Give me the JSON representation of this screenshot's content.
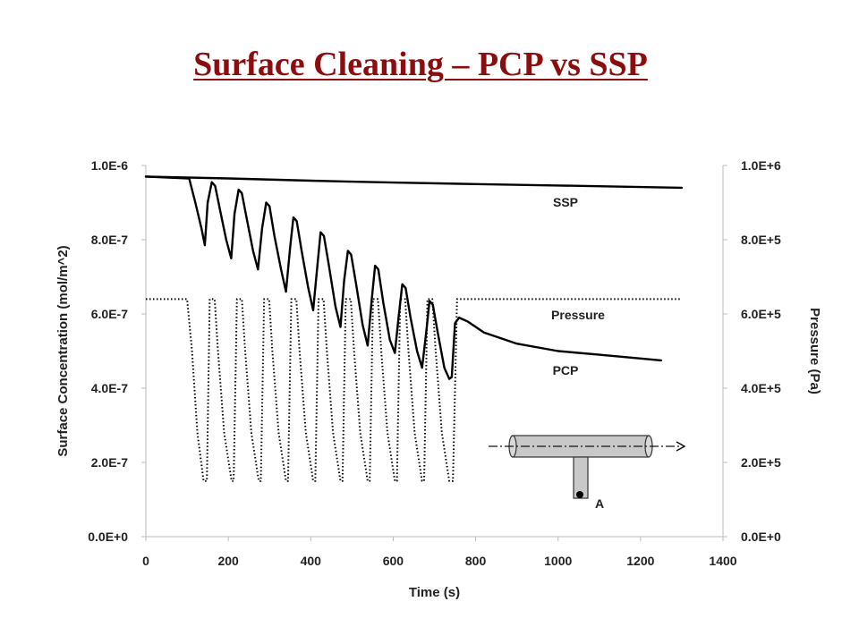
{
  "slide": {
    "title": "Surface Cleaning – PCP vs SSP"
  },
  "chart_data": {
    "type": "line",
    "xlabel": "Time (s)",
    "ylabel": "Surface Concentration (mol/m^2)",
    "y2label": "Pressure (Pa)",
    "xlim": [
      0,
      1400
    ],
    "ylim": [
      0,
      1e-06
    ],
    "y2lim": [
      0,
      1000000
    ],
    "x_ticks": [
      "0",
      "200",
      "400",
      "600",
      "800",
      "1000",
      "1200",
      "1400"
    ],
    "y_ticks": [
      "0.0E+0",
      "2.0E-7",
      "4.0E-7",
      "6.0E-7",
      "8.0E-7",
      "1.0E-6"
    ],
    "y2_ticks": [
      "0.0E+0",
      "2.0E+5",
      "4.0E+5",
      "6.0E+5",
      "8.0E+5",
      "1.0E+6"
    ],
    "grid": false,
    "series": [
      {
        "name": "SSP",
        "axis": "left",
        "style": "solid",
        "x": [
          0,
          200,
          400,
          600,
          800,
          1000,
          1300
        ],
        "y": [
          9.7e-07,
          9.65e-07,
          9.59e-07,
          9.54e-07,
          9.5e-07,
          9.46e-07,
          9.4e-07
        ]
      },
      {
        "name": "PCP",
        "axis": "left",
        "style": "solid",
        "x": [
          0,
          105,
          120,
          135,
          143,
          150,
          160,
          168,
          180,
          195,
          207,
          215,
          225,
          233,
          245,
          260,
          272,
          282,
          292,
          300,
          312,
          328,
          340,
          350,
          358,
          366,
          378,
          394,
          406,
          416,
          424,
          432,
          444,
          460,
          472,
          481,
          490,
          498,
          510,
          526,
          538,
          548,
          556,
          564,
          576,
          592,
          604,
          613,
          622,
          630,
          642,
          658,
          670,
          680,
          688,
          696,
          708,
          724,
          736,
          742,
          750,
          760,
          780,
          820,
          900,
          1000,
          1100,
          1250
        ],
        "y": [
          9.7e-07,
          9.65e-07,
          9e-07,
          8.3e-07,
          7.85e-07,
          9e-07,
          9.55e-07,
          9.45e-07,
          8.8e-07,
          8e-07,
          7.5e-07,
          8.7e-07,
          9.35e-07,
          9.25e-07,
          8.55e-07,
          7.7e-07,
          7.2e-07,
          8.3e-07,
          9e-07,
          8.9e-07,
          8.1e-07,
          7.2e-07,
          6.6e-07,
          7.8e-07,
          8.6e-07,
          8.5e-07,
          7.7e-07,
          6.7e-07,
          6.1e-07,
          7.3e-07,
          8.2e-07,
          8.1e-07,
          7.3e-07,
          6.2e-07,
          5.65e-07,
          6.9e-07,
          7.7e-07,
          7.6e-07,
          6.8e-07,
          5.7e-07,
          5.15e-07,
          6.4e-07,
          7.3e-07,
          7.2e-07,
          6.3e-07,
          5.3e-07,
          4.95e-07,
          5.9e-07,
          6.8e-07,
          6.7e-07,
          5.9e-07,
          5e-07,
          4.55e-07,
          5.5e-07,
          6.35e-07,
          6.25e-07,
          5.5e-07,
          4.55e-07,
          4.25e-07,
          4.3e-07,
          5.75e-07,
          5.9e-07,
          5.8e-07,
          5.5e-07,
          5.2e-07,
          5e-07,
          4.9e-07,
          4.75e-07
        ]
      },
      {
        "name": "Pressure",
        "axis": "right",
        "style": "dotted",
        "x": [
          0,
          100,
          112,
          125,
          140,
          148,
          155,
          167,
          175,
          190,
          208,
          213,
          221,
          233,
          241,
          256,
          274,
          279,
          287,
          299,
          307,
          322,
          340,
          345,
          353,
          365,
          373,
          388,
          406,
          411,
          419,
          431,
          439,
          454,
          472,
          477,
          485,
          497,
          505,
          520,
          538,
          543,
          551,
          563,
          571,
          586,
          604,
          609,
          617,
          629,
          637,
          652,
          670,
          675,
          683,
          695,
          703,
          718,
          736,
          745,
          755,
          1300
        ],
        "y": [
          640000,
          640000,
          500000,
          280000,
          150000,
          150000,
          640000,
          640000,
          500000,
          280000,
          150000,
          150000,
          640000,
          640000,
          500000,
          280000,
          150000,
          150000,
          640000,
          640000,
          500000,
          280000,
          150000,
          150000,
          640000,
          640000,
          500000,
          280000,
          150000,
          150000,
          640000,
          640000,
          500000,
          280000,
          150000,
          150000,
          640000,
          640000,
          500000,
          280000,
          150000,
          150000,
          640000,
          640000,
          500000,
          280000,
          150000,
          150000,
          640000,
          640000,
          500000,
          280000,
          150000,
          150000,
          640000,
          640000,
          500000,
          280000,
          150000,
          150000,
          640000,
          640000
        ]
      }
    ],
    "annotations": [
      "SSP",
      "Pressure",
      "PCP"
    ],
    "inset": {
      "label": "A"
    }
  }
}
